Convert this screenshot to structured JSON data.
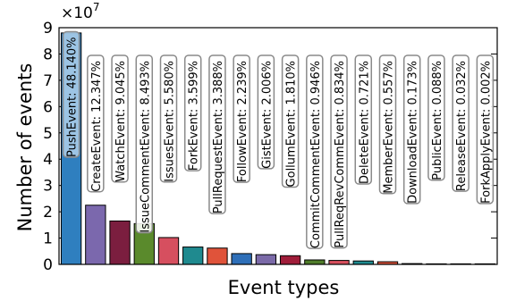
{
  "chart_data": {
    "type": "bar",
    "xlabel": "Event types",
    "ylabel": "Number of events",
    "y_scale_label": "×10",
    "y_scale_exponent": "7",
    "ylim": [
      0,
      9
    ],
    "yticks": [
      "0",
      "1",
      "2",
      "3",
      "4",
      "5",
      "6",
      "7",
      "8",
      "9"
    ],
    "grid": false,
    "categories": [
      "PushEvent",
      "CreateEvent",
      "WatchEvent",
      "IssueCommentEvent",
      "IssuesEvent",
      "ForkEvent",
      "PullRequestEvent",
      "FollowEvent",
      "GistEvent",
      "GollumEvent",
      "CommitCommentEvent",
      "PullReqRevCommEvent",
      "DeleteEvent",
      "MemberEvent",
      "DownloadEvent",
      "PublicEvent",
      "ReleaseEvent",
      "ForkApplyEvent"
    ],
    "values": [
      8.8,
      2.25,
      1.65,
      1.55,
      1.02,
      0.66,
      0.62,
      0.41,
      0.37,
      0.33,
      0.17,
      0.15,
      0.13,
      0.1,
      0.03,
      0.016,
      0.006,
      0.0004
    ],
    "labels": [
      "PushEvent: 48.140%",
      "CreateEvent: 12.347%",
      "WatchEvent: 9.045%",
      "IssueCommentEvent: 8.493%",
      "IssuesEvent: 5.580%",
      "ForkEvent: 3.599%",
      "PullRequestEvent: 3.388%",
      "FollowEvent: 2.239%",
      "GistEvent: 2.006%",
      "GollumEvent: 1.810%",
      "CommitCommentEvent: 0.946%",
      "PullReqRevCommEvent: 0.834%",
      "DeleteEvent: 0.721%",
      "MemberEvent: 0.557%",
      "DownloadEvent: 0.173%",
      "PublicEvent: 0.088%",
      "ReleaseEvent: 0.032%",
      "ForkApplyEvent: 0.002%"
    ],
    "colors": [
      "#2f7fbf",
      "#7b68ad",
      "#7b1e3f",
      "#5a8a2c",
      "#d64f5f",
      "#1f8a8f",
      "#e0533a",
      "#2e6fb8",
      "#7b6aa8",
      "#a01d3a",
      "#4f7c2a",
      "#d9505e",
      "#1f8a8f",
      "#e0533a",
      "#2e6fb8",
      "#7a6aa5",
      "#a42b45",
      "#4f7c2a"
    ],
    "label_tops": [
      8.78,
      7.88,
      7.88,
      7.88,
      7.88,
      7.88,
      7.88,
      7.88,
      7.88,
      7.88,
      7.88,
      7.88,
      7.88,
      7.88,
      7.88,
      7.88,
      7.88,
      7.88
    ]
  }
}
